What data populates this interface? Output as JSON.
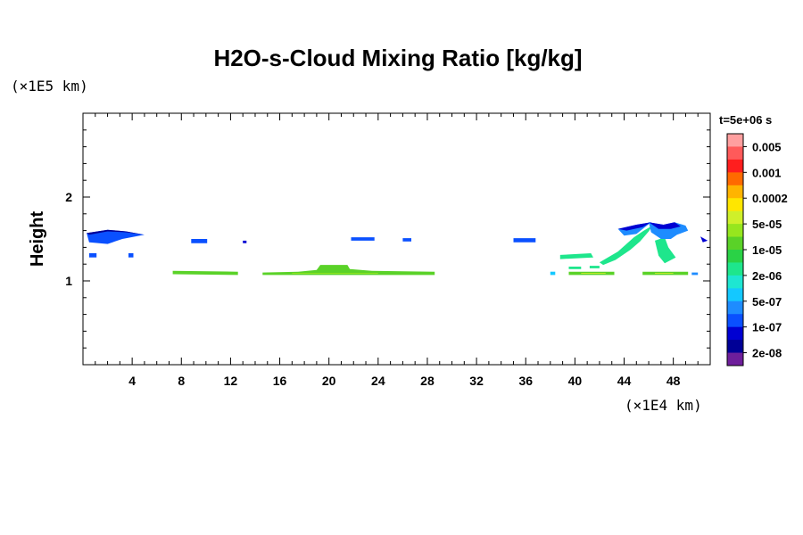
{
  "chart_data": {
    "type": "heatmap",
    "title": "H2O-s-Cloud Mixing Ratio [kg/kg]",
    "xlabel": "",
    "ylabel": "Height",
    "x_unit": "(×1E4 km)",
    "y_unit": "(×1E5 km)",
    "xlim": [
      0,
      51
    ],
    "ylim": [
      0,
      3
    ],
    "x_ticks": [
      4,
      8,
      12,
      16,
      20,
      24,
      28,
      32,
      36,
      40,
      44,
      48
    ],
    "y_ticks": [
      1,
      2
    ],
    "time_label": "t=5e+06 s",
    "colorbar": {
      "labels": [
        "0.005",
        "0.001",
        "0.0002",
        "5e-05",
        "1e-05",
        "2e-06",
        "5e-07",
        "1e-07",
        "2e-08"
      ],
      "colors": [
        "#ff9f9f",
        "#ff5a5a",
        "#ff1e1e",
        "#ff6a00",
        "#ffb400",
        "#ffe600",
        "#cff02a",
        "#96e61e",
        "#5ad228",
        "#2ad246",
        "#1ee68c",
        "#1ee6d2",
        "#14c8ff",
        "#1e8cff",
        "#0a50ff",
        "#0000d2",
        "#000096",
        "#6e1e9b"
      ]
    },
    "regions": [
      {
        "level": 14,
        "points": [
          [
            0.3,
            1.57
          ],
          [
            2,
            1.61
          ],
          [
            3.5,
            1.59
          ],
          [
            5,
            1.55
          ],
          [
            3.2,
            1.5
          ],
          [
            2,
            1.44
          ],
          [
            0.5,
            1.46
          ]
        ]
      },
      {
        "level": 16,
        "points": [
          [
            0.3,
            1.57
          ],
          [
            2,
            1.61
          ],
          [
            3.5,
            1.59
          ],
          [
            5,
            1.55
          ],
          [
            3.5,
            1.58
          ],
          [
            2,
            1.59
          ],
          [
            0.5,
            1.55
          ]
        ]
      },
      {
        "level": 14,
        "points": [
          [
            0.5,
            1.33
          ],
          [
            1.1,
            1.33
          ],
          [
            1.1,
            1.28
          ],
          [
            0.5,
            1.28
          ]
        ]
      },
      {
        "level": 14,
        "points": [
          [
            3.7,
            1.33
          ],
          [
            4.1,
            1.33
          ],
          [
            4.1,
            1.28
          ],
          [
            3.7,
            1.28
          ]
        ]
      },
      {
        "level": 14,
        "points": [
          [
            8.8,
            1.5
          ],
          [
            10.1,
            1.5
          ],
          [
            10.1,
            1.45
          ],
          [
            8.8,
            1.45
          ]
        ]
      },
      {
        "level": 15,
        "points": [
          [
            13.0,
            1.48
          ],
          [
            13.3,
            1.48
          ],
          [
            13.3,
            1.45
          ],
          [
            13.0,
            1.45
          ]
        ]
      },
      {
        "level": 14,
        "points": [
          [
            21.8,
            1.52
          ],
          [
            23.7,
            1.52
          ],
          [
            23.7,
            1.48
          ],
          [
            21.8,
            1.48
          ]
        ]
      },
      {
        "level": 14,
        "points": [
          [
            26.0,
            1.51
          ],
          [
            26.7,
            1.51
          ],
          [
            26.7,
            1.47
          ],
          [
            26.0,
            1.47
          ]
        ]
      },
      {
        "level": 14,
        "points": [
          [
            35.0,
            1.51
          ],
          [
            36.8,
            1.51
          ],
          [
            36.8,
            1.46
          ],
          [
            35.0,
            1.46
          ]
        ]
      },
      {
        "level": 15,
        "points": [
          [
            50.2,
            1.53
          ],
          [
            50.8,
            1.48
          ],
          [
            50.4,
            1.46
          ]
        ]
      },
      {
        "level": 8,
        "points": [
          [
            7.3,
            1.12
          ],
          [
            12.6,
            1.11
          ],
          [
            12.6,
            1.07
          ],
          [
            7.3,
            1.08
          ]
        ]
      },
      {
        "level": 8,
        "points": [
          [
            14.6,
            1.1
          ],
          [
            17.5,
            1.11
          ],
          [
            19,
            1.13
          ],
          [
            19.3,
            1.19
          ],
          [
            21.5,
            1.19
          ],
          [
            21.7,
            1.14
          ],
          [
            23.5,
            1.12
          ],
          [
            28.6,
            1.11
          ],
          [
            28.6,
            1.07
          ],
          [
            14.6,
            1.07
          ]
        ]
      },
      {
        "level": 7,
        "points": [
          [
            17,
            1.095
          ],
          [
            24,
            1.095
          ],
          [
            24,
            1.085
          ],
          [
            17,
            1.085
          ]
        ]
      },
      {
        "level": 8,
        "points": [
          [
            39.5,
            1.11
          ],
          [
            43.2,
            1.11
          ],
          [
            43.2,
            1.07
          ],
          [
            39.5,
            1.07
          ]
        ]
      },
      {
        "level": 6,
        "points": [
          [
            40.5,
            1.095
          ],
          [
            42.5,
            1.095
          ],
          [
            42.5,
            1.085
          ],
          [
            40.5,
            1.085
          ]
        ]
      },
      {
        "level": 8,
        "points": [
          [
            45.5,
            1.11
          ],
          [
            49.2,
            1.11
          ],
          [
            49.2,
            1.07
          ],
          [
            45.5,
            1.07
          ]
        ]
      },
      {
        "level": 6,
        "points": [
          [
            46.5,
            1.095
          ],
          [
            48.0,
            1.095
          ],
          [
            48.0,
            1.085
          ],
          [
            46.5,
            1.085
          ]
        ]
      },
      {
        "level": 13,
        "points": [
          [
            49.5,
            1.1
          ],
          [
            50.0,
            1.1
          ],
          [
            50.0,
            1.07
          ],
          [
            49.5,
            1.07
          ]
        ]
      },
      {
        "level": 10,
        "points": [
          [
            38.8,
            1.31
          ],
          [
            41.3,
            1.33
          ],
          [
            41.5,
            1.28
          ],
          [
            38.8,
            1.26
          ]
        ]
      },
      {
        "level": 10,
        "points": [
          [
            39.5,
            1.17
          ],
          [
            40.5,
            1.17
          ],
          [
            40.5,
            1.14
          ],
          [
            39.5,
            1.14
          ]
        ]
      },
      {
        "level": 10,
        "points": [
          [
            41.2,
            1.18
          ],
          [
            42.0,
            1.18
          ],
          [
            42.0,
            1.15
          ],
          [
            41.2,
            1.15
          ]
        ]
      },
      {
        "level": 12,
        "points": [
          [
            38.0,
            1.11
          ],
          [
            38.4,
            1.11
          ],
          [
            38.4,
            1.07
          ],
          [
            38.0,
            1.07
          ]
        ]
      },
      {
        "level": 10,
        "points": [
          [
            42.0,
            1.22
          ],
          [
            43.5,
            1.35
          ],
          [
            44.8,
            1.52
          ],
          [
            45.6,
            1.6
          ],
          [
            46.3,
            1.66
          ],
          [
            46.0,
            1.59
          ],
          [
            45.3,
            1.47
          ],
          [
            44.5,
            1.37
          ],
          [
            43.3,
            1.25
          ],
          [
            42.3,
            1.19
          ]
        ]
      },
      {
        "level": 13,
        "points": [
          [
            43.5,
            1.62
          ],
          [
            45.0,
            1.67
          ],
          [
            46.2,
            1.7
          ],
          [
            45.0,
            1.56
          ],
          [
            44.0,
            1.54
          ]
        ]
      },
      {
        "level": 15,
        "points": [
          [
            43.5,
            1.62
          ],
          [
            45.0,
            1.67
          ],
          [
            46.2,
            1.7
          ],
          [
            45.5,
            1.64
          ],
          [
            44.2,
            1.6
          ]
        ]
      },
      {
        "level": 10,
        "points": [
          [
            46.5,
            1.48
          ],
          [
            47.3,
            1.52
          ],
          [
            47.6,
            1.4
          ],
          [
            48.2,
            1.28
          ],
          [
            47.3,
            1.21
          ],
          [
            46.8,
            1.3
          ]
        ]
      },
      {
        "level": 13,
        "points": [
          [
            46.0,
            1.7
          ],
          [
            47.2,
            1.67
          ],
          [
            48.1,
            1.7
          ],
          [
            49.0,
            1.66
          ],
          [
            49.2,
            1.6
          ],
          [
            48.3,
            1.55
          ],
          [
            47.8,
            1.5
          ],
          [
            47.0,
            1.5
          ],
          [
            46.2,
            1.58
          ]
        ]
      },
      {
        "level": 15,
        "points": [
          [
            46.0,
            1.7
          ],
          [
            47.2,
            1.67
          ],
          [
            48.1,
            1.7
          ],
          [
            48.6,
            1.65
          ],
          [
            47.8,
            1.62
          ],
          [
            46.8,
            1.62
          ]
        ]
      }
    ]
  }
}
